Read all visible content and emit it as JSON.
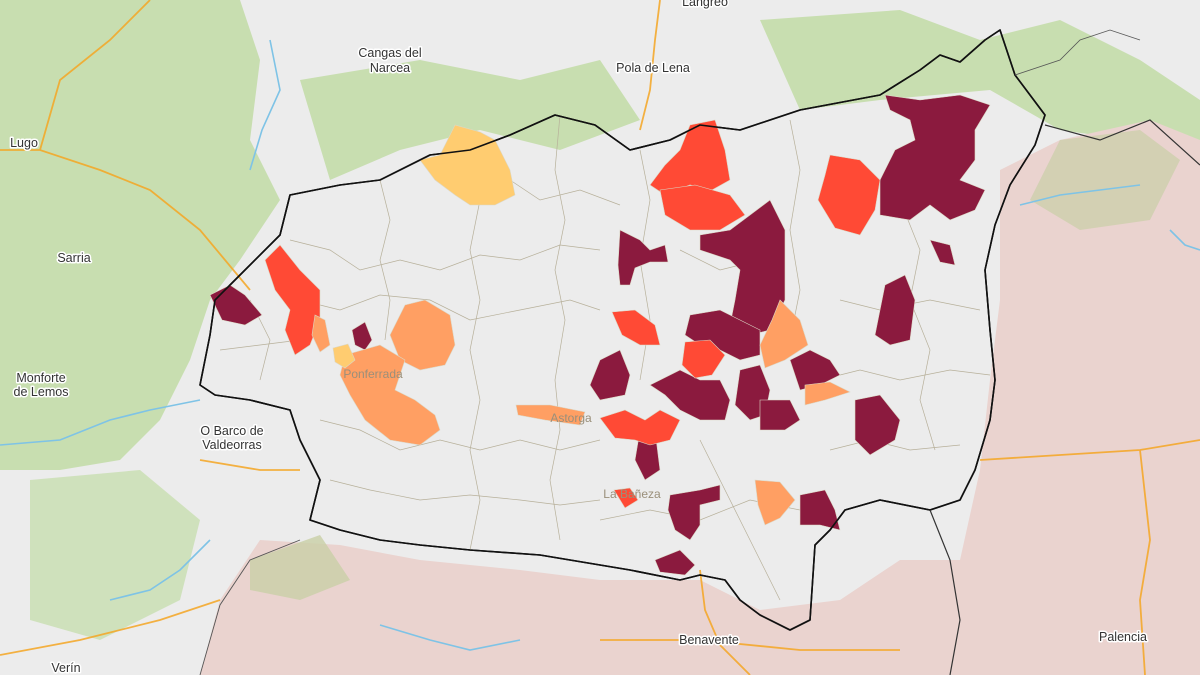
{
  "map": {
    "place_labels": {
      "langreo": "Langreo",
      "cangas": "Cangas del",
      "cangas2": "Narcea",
      "pola_lena": "Pola de Lena",
      "lugo": "Lugo",
      "sarria": "Sarria",
      "monforte": "Monforte",
      "monforte2": "de Lemos",
      "barco": "O Barco de",
      "barco2": "Valdeorras",
      "ponferrada": "Ponferrada",
      "astorga": "Astorga",
      "baneza": "La Bañeza",
      "benavente": "Benavente",
      "palencia": "Palencia",
      "verin": "Verín"
    },
    "colors": {
      "base_land": "#ececec",
      "forest": "#c8deb0",
      "province_fill": "#dcd8c6",
      "east_region": "#ead3cf",
      "south_region": "#ead3cf",
      "class_highest": "#8b1a3e",
      "class_high": "#ff4a35",
      "class_medium": "#ff9f63",
      "class_low": "#ffcc70",
      "roads": "#f5a623",
      "water": "#7ec3e6"
    }
  }
}
